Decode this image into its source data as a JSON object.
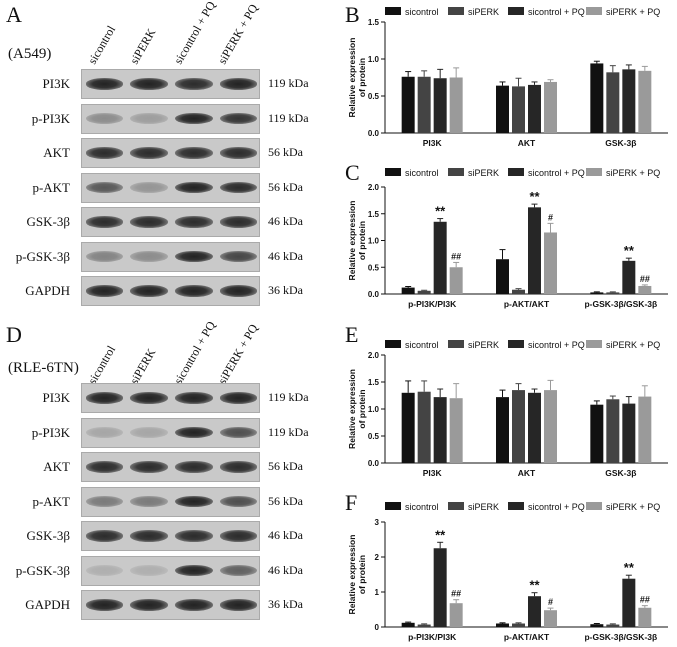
{
  "panels": {
    "A": {
      "letter": "A",
      "cell_line": "(A549)"
    },
    "B": {
      "letter": "B"
    },
    "C": {
      "letter": "C"
    },
    "D": {
      "letter": "D",
      "cell_line": "(RLE-6TN)"
    },
    "E": {
      "letter": "E"
    },
    "F": {
      "letter": "F"
    }
  },
  "lane_headers": [
    "sicontrol",
    "siPERK",
    "sicontrol + PQ",
    "siPERK + PQ"
  ],
  "colors": {
    "sicontrol": "#111111",
    "siPERK": "#444444",
    "sicontrol_pq": "#262626",
    "siPERK_pq": "#9a9a9a"
  },
  "blot_A": [
    {
      "label": "PI3K",
      "kda": "119 kDa",
      "intensity": [
        0.95,
        0.95,
        0.9,
        0.95
      ]
    },
    {
      "label": "p-PI3K",
      "kda": "119 kDa",
      "intensity": [
        0.35,
        0.25,
        0.95,
        0.85
      ]
    },
    {
      "label": "AKT",
      "kda": "56 kDa",
      "intensity": [
        0.9,
        0.9,
        0.9,
        0.9
      ]
    },
    {
      "label": "p-AKT",
      "kda": "56 kDa",
      "intensity": [
        0.65,
        0.3,
        0.95,
        0.9
      ]
    },
    {
      "label": "GSK-3β",
      "kda": "46 kDa",
      "intensity": [
        0.9,
        0.9,
        0.9,
        0.9
      ]
    },
    {
      "label": "p-GSK-3β",
      "kda": "46 kDa",
      "intensity": [
        0.4,
        0.35,
        0.95,
        0.75
      ]
    },
    {
      "label": "GAPDH",
      "kda": "36 kDa",
      "intensity": [
        0.95,
        0.95,
        0.95,
        0.95
      ]
    }
  ],
  "blot_D": [
    {
      "label": "PI3K",
      "kda": "119 kDa",
      "intensity": [
        0.95,
        0.95,
        0.95,
        0.95
      ]
    },
    {
      "label": "p-PI3K",
      "kda": "119 kDa",
      "intensity": [
        0.2,
        0.2,
        0.95,
        0.7
      ]
    },
    {
      "label": "AKT",
      "kda": "56 kDa",
      "intensity": [
        0.9,
        0.9,
        0.9,
        0.9
      ]
    },
    {
      "label": "p-AKT",
      "kda": "56 kDa",
      "intensity": [
        0.45,
        0.45,
        0.95,
        0.7
      ]
    },
    {
      "label": "GSK-3β",
      "kda": "46 kDa",
      "intensity": [
        0.9,
        0.9,
        0.9,
        0.9
      ]
    },
    {
      "label": "p-GSK-3β",
      "kda": "46 kDa",
      "intensity": [
        0.15,
        0.15,
        0.95,
        0.6
      ]
    },
    {
      "label": "GAPDH",
      "kda": "36 kDa",
      "intensity": [
        0.95,
        0.95,
        0.95,
        0.95
      ]
    }
  ],
  "chart_data": [
    {
      "panel": "B",
      "type": "bar",
      "ylabel": "Relative expression of protein",
      "ylim": [
        0.0,
        1.5
      ],
      "yticks": [
        "0.0",
        "0.5",
        "1.0",
        "1.5"
      ],
      "categories": [
        "PI3K",
        "AKT",
        "GSK-3β"
      ],
      "series": [
        {
          "name": "sicontrol",
          "values": [
            0.76,
            0.64,
            0.94
          ],
          "errors": [
            0.07,
            0.05,
            0.03
          ],
          "marks": [
            "",
            "",
            ""
          ]
        },
        {
          "name": "siPERK",
          "values": [
            0.76,
            0.63,
            0.82
          ],
          "errors": [
            0.08,
            0.11,
            0.09
          ],
          "marks": [
            "",
            "",
            ""
          ]
        },
        {
          "name": "sicontrol + PQ",
          "values": [
            0.74,
            0.65,
            0.86
          ],
          "errors": [
            0.12,
            0.04,
            0.06
          ],
          "marks": [
            "",
            "",
            ""
          ]
        },
        {
          "name": "siPERK + PQ",
          "values": [
            0.75,
            0.69,
            0.84
          ],
          "errors": [
            0.13,
            0.03,
            0.06
          ],
          "marks": [
            "",
            "",
            ""
          ]
        }
      ]
    },
    {
      "panel": "C",
      "type": "bar",
      "ylabel": "Relative expression of protein",
      "ylim": [
        0.0,
        2.0
      ],
      "yticks": [
        "0.0",
        "0.5",
        "1.0",
        "1.5",
        "2.0"
      ],
      "categories": [
        "p-PI3K/PI3K",
        "p-AKT/AKT",
        "p-GSK-3β/GSK-3β"
      ],
      "series": [
        {
          "name": "sicontrol",
          "values": [
            0.12,
            0.65,
            0.03
          ],
          "errors": [
            0.02,
            0.18,
            0.01
          ],
          "marks": [
            "",
            "",
            ""
          ]
        },
        {
          "name": "siPERK",
          "values": [
            0.06,
            0.08,
            0.03
          ],
          "errors": [
            0.01,
            0.02,
            0.01
          ],
          "marks": [
            "",
            "",
            ""
          ]
        },
        {
          "name": "sicontrol + PQ",
          "values": [
            1.35,
            1.62,
            0.62
          ],
          "errors": [
            0.06,
            0.06,
            0.05
          ],
          "marks": [
            "**",
            "**",
            "**"
          ]
        },
        {
          "name": "siPERK + PQ",
          "values": [
            0.5,
            1.15,
            0.15
          ],
          "errors": [
            0.09,
            0.17,
            0.02
          ],
          "marks": [
            "##",
            "#",
            "##"
          ]
        }
      ]
    },
    {
      "panel": "E",
      "type": "bar",
      "ylabel": "Relative expression of protein",
      "ylim": [
        0.0,
        2.0
      ],
      "yticks": [
        "0.0",
        "0.5",
        "1.0",
        "1.5",
        "2.0"
      ],
      "categories": [
        "PI3K",
        "AKT",
        "GSK-3β"
      ],
      "series": [
        {
          "name": "sicontrol",
          "values": [
            1.3,
            1.22,
            1.08
          ],
          "errors": [
            0.22,
            0.13,
            0.07
          ],
          "marks": [
            "",
            "",
            ""
          ]
        },
        {
          "name": "siPERK",
          "values": [
            1.32,
            1.35,
            1.18
          ],
          "errors": [
            0.2,
            0.12,
            0.06
          ],
          "marks": [
            "",
            "",
            ""
          ]
        },
        {
          "name": "sicontrol + PQ",
          "values": [
            1.22,
            1.3,
            1.1
          ],
          "errors": [
            0.15,
            0.07,
            0.13
          ],
          "marks": [
            "",
            "",
            ""
          ]
        },
        {
          "name": "siPERK + PQ",
          "values": [
            1.2,
            1.35,
            1.23
          ],
          "errors": [
            0.27,
            0.18,
            0.2
          ],
          "marks": [
            "",
            "",
            ""
          ]
        }
      ]
    },
    {
      "panel": "F",
      "type": "bar",
      "ylabel": "Relative expression of protein",
      "ylim": [
        0,
        3
      ],
      "yticks": [
        "0",
        "1",
        "2",
        "3"
      ],
      "categories": [
        "p-PI3K/PI3K",
        "p-AKT/AKT",
        "p-GSK-3β/GSK-3β"
      ],
      "series": [
        {
          "name": "sicontrol",
          "values": [
            0.12,
            0.1,
            0.08
          ],
          "errors": [
            0.02,
            0.02,
            0.02
          ],
          "marks": [
            "",
            "",
            ""
          ]
        },
        {
          "name": "siPERK",
          "values": [
            0.07,
            0.1,
            0.07
          ],
          "errors": [
            0.02,
            0.02,
            0.02
          ],
          "marks": [
            "",
            "",
            ""
          ]
        },
        {
          "name": "sicontrol + PQ",
          "values": [
            2.25,
            0.88,
            1.38
          ],
          "errors": [
            0.17,
            0.1,
            0.1
          ],
          "marks": [
            "**",
            "**",
            "**"
          ]
        },
        {
          "name": "siPERK + PQ",
          "values": [
            0.68,
            0.48,
            0.55
          ],
          "errors": [
            0.1,
            0.06,
            0.06
          ],
          "marks": [
            "##",
            "#",
            "##"
          ]
        }
      ]
    }
  ]
}
